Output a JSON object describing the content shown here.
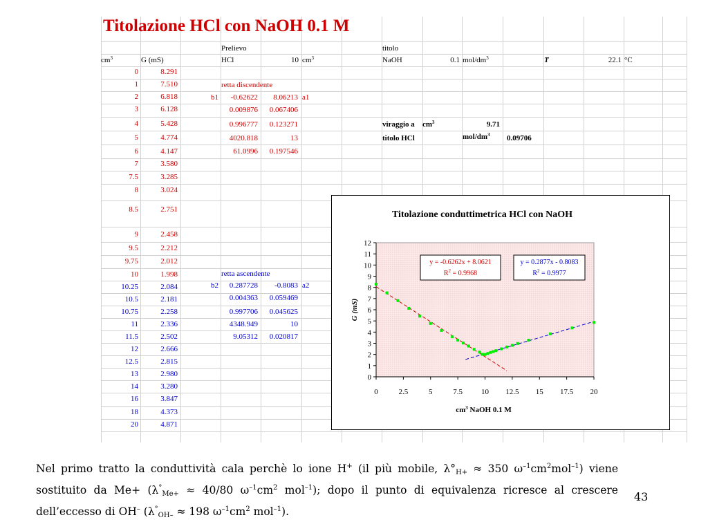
{
  "sheet": {
    "title": "Titolazione HCl con NaOH 0.1 M",
    "col_header_cm3": "cm",
    "col_header_cm3_sup": "3",
    "col_header_g": "G (mS)",
    "prelievo_label": "Prelievo",
    "hcl_label": "HCl",
    "hcl_volume": "10",
    "hcl_unit": "cm",
    "hcl_unit_sup": "3",
    "titolo_label": "titolo",
    "naoh_label": "NaOH",
    "naoh_conc": "0.1",
    "naoh_unit": "mol/dm",
    "naoh_unit_sup": "3",
    "temp_symbol": "T",
    "temp_value": "22.1",
    "temp_unit": "°C",
    "rows": [
      {
        "v": "0",
        "g": "8.291",
        "c": "red"
      },
      {
        "v": "1",
        "g": "7.510",
        "c": "red"
      },
      {
        "v": "2",
        "g": "6.818",
        "c": "red"
      },
      {
        "v": "3",
        "g": "6.128",
        "c": "red"
      },
      {
        "v": "4",
        "g": "5.428",
        "c": "red"
      },
      {
        "v": "5",
        "g": "4.774",
        "c": "red"
      },
      {
        "v": "6",
        "g": "4.147",
        "c": "red"
      },
      {
        "v": "7",
        "g": "3.580",
        "c": "red"
      },
      {
        "v": "7.5",
        "g": "3.285",
        "c": "red"
      },
      {
        "v": "8",
        "g": "3.024",
        "c": "red"
      },
      {
        "v": "8.5",
        "g": "2.751",
        "c": "red"
      },
      {
        "v": "9",
        "g": "2.458",
        "c": "red"
      },
      {
        "v": "9.5",
        "g": "2.212",
        "c": "red"
      },
      {
        "v": "9.75",
        "g": "2.012",
        "c": "red"
      },
      {
        "v": "10",
        "g": "1.998",
        "c": "red"
      },
      {
        "v": "10.25",
        "g": "2.084",
        "c": "blue"
      },
      {
        "v": "10.5",
        "g": "2.181",
        "c": "blue"
      },
      {
        "v": "10.75",
        "g": "2.258",
        "c": "blue"
      },
      {
        "v": "11",
        "g": "2.336",
        "c": "blue"
      },
      {
        "v": "11.5",
        "g": "2.502",
        "c": "blue"
      },
      {
        "v": "12",
        "g": "2.666",
        "c": "blue"
      },
      {
        "v": "12.5",
        "g": "2.815",
        "c": "blue"
      },
      {
        "v": "13",
        "g": "2.980",
        "c": "blue"
      },
      {
        "v": "14",
        "g": "3.280",
        "c": "blue"
      },
      {
        "v": "16",
        "g": "3.847",
        "c": "blue"
      },
      {
        "v": "18",
        "g": "4.373",
        "c": "blue"
      },
      {
        "v": "20",
        "g": "4.871",
        "c": "blue"
      }
    ],
    "desc": {
      "label": "retta discendente",
      "b_label": "b1",
      "a_label": "a1",
      "rows": [
        [
          "-0.62622",
          "8.06213"
        ],
        [
          "0.009876",
          "0.067406"
        ],
        [
          "0.996777",
          "0.123271"
        ],
        [
          "4020.818",
          "13"
        ],
        [
          "61.0996",
          "0.197546"
        ]
      ]
    },
    "asc": {
      "label": "retta ascendente",
      "b_label": "b2",
      "a_label": "a2",
      "rows": [
        [
          "0.287728",
          "-0.8083"
        ],
        [
          "0.004363",
          "0.059469"
        ],
        [
          "0.997706",
          "0.045625"
        ],
        [
          "4348.949",
          "10"
        ],
        [
          "9.05312",
          "0.020817"
        ]
      ]
    },
    "viraggio_label": "viraggio a",
    "viraggio_unit": "cm",
    "viraggio_unit_sup": "3",
    "viraggio_value": "9.71",
    "titolo_hcl_label": "titolo HCl",
    "titolo_hcl_unit": "mol/dm",
    "titolo_hcl_unit_sup": "3",
    "titolo_hcl_value": "0.09706"
  },
  "chart_data": {
    "type": "scatter",
    "title": "Titolazione conduttimetrica HCl con NaOH",
    "xlabel": "cm",
    "xlabel_sup": "3",
    "xlabel_rest": " NaOH 0.1 M",
    "ylabel": "G (mS)",
    "xlim": [
      0,
      20
    ],
    "ylim": [
      0,
      12
    ],
    "xticks": [
      "0",
      "2.5",
      "5",
      "7.5",
      "10",
      "12.5",
      "15",
      "17.5",
      "20"
    ],
    "yticks": [
      "0",
      "1",
      "2",
      "3",
      "4",
      "5",
      "6",
      "7",
      "8",
      "9",
      "10",
      "11",
      "12"
    ],
    "series": [
      {
        "color": "#00ee00",
        "x": [
          0,
          1,
          2,
          3,
          4,
          5,
          6,
          7,
          7.5,
          8,
          8.5,
          9,
          9.5,
          9.75,
          10,
          10.25,
          10.5,
          10.75,
          11,
          11.5,
          12,
          12.5,
          13,
          14,
          16,
          18,
          20
        ],
        "y": [
          8.291,
          7.51,
          6.818,
          6.128,
          5.428,
          4.774,
          4.147,
          3.58,
          3.285,
          3.024,
          2.751,
          2.458,
          2.212,
          2.012,
          1.998,
          2.084,
          2.181,
          2.258,
          2.336,
          2.502,
          2.666,
          2.815,
          2.98,
          3.28,
          3.847,
          4.373,
          4.871
        ]
      }
    ],
    "trendlines": [
      {
        "color": "#cc0000",
        "slope": -0.6262,
        "intercept": 8.0621,
        "x_range": [
          0,
          12
        ],
        "eq": "y = -0.6262x + 8.0621",
        "r2_label": "R",
        "r2_sup": "2",
        "r2_value": " = 0.9968"
      },
      {
        "color": "#0000cc",
        "slope": 0.2877,
        "intercept": -0.8083,
        "x_range": [
          8.2,
          20
        ],
        "eq": "y = 0.2877x - 0.8083",
        "r2_label": "R",
        "r2_sup": "2",
        "r2_value": " = 0.9977"
      }
    ],
    "plot_background": "#f5d3d3"
  },
  "caption": {
    "line1_a": "Nel primo tratto la conduttività cala perchè lo ione H",
    "line1_plus": "+",
    "line1_b": " (il più mobile, λ°",
    "line1_sub": "H+",
    "line1_c": " ≈ 350 ω",
    "line1_exp1": "–1",
    "line1_d": "cm",
    "line1_exp2": "2",
    "line1_e": "mol",
    "line1_exp3": "–1",
    "line1_f": ")",
    "line2_a": "viene sostituito da Me+ (λ",
    "line2_deg": "°",
    "line2_sub": "Me+",
    "line2_b": " ≈ 40/80 ω",
    "line2_exp1": "–1",
    "line2_c": "cm",
    "line2_exp2": "2",
    "line2_d": " mol",
    "line2_exp3": "–1",
    "line2_e": "); dopo il punto di equivalenza ricresce al",
    "line3_a": "crescere dell’eccesso di OH",
    "line3_exp0": "–",
    "line3_b": " (λ",
    "line3_deg": "°",
    "line3_sub": "OH–",
    "line3_c": " ≈ 198 ω",
    "line3_exp1": "–1",
    "line3_d": "cm",
    "line3_exp2": "2",
    "line3_e": " mol",
    "line3_exp3": "–1",
    "line3_f": ")."
  },
  "page_number": "43"
}
